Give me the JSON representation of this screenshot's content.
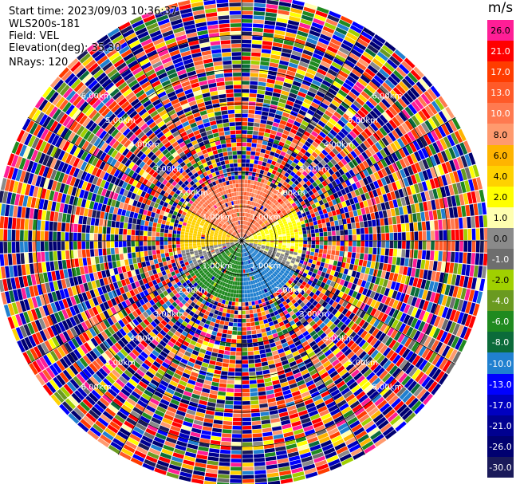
{
  "info": {
    "start_time": "Start time: 2023/09/03 10:36:37",
    "station": "WLS200s-181",
    "field": "Field: VEL",
    "elevation": "Elevation(deg): 35.30",
    "nrays": "NRays: 120"
  },
  "colorbar": {
    "unit": "m/s",
    "levels": [
      {
        "label": "26.0",
        "color": "#ff1e96",
        "text": "#000000"
      },
      {
        "label": "21.0",
        "color": "#ff0000",
        "text": "#ffffff"
      },
      {
        "label": "17.0",
        "color": "#ff3c00",
        "text": "#ffffff"
      },
      {
        "label": "13.0",
        "color": "#ff5a28",
        "text": "#ffffff"
      },
      {
        "label": "10.0",
        "color": "#ff7a50",
        "text": "#ffffff"
      },
      {
        "label": "8.0",
        "color": "#ff9a6e",
        "text": "#000000"
      },
      {
        "label": "6.0",
        "color": "#ffb400",
        "text": "#000000"
      },
      {
        "label": "4.0",
        "color": "#ffd200",
        "text": "#000000"
      },
      {
        "label": "2.0",
        "color": "#ffff00",
        "text": "#000000"
      },
      {
        "label": "1.0",
        "color": "#ffffb0",
        "text": "#000000"
      },
      {
        "label": "0.0",
        "color": "#8a8a8a",
        "text": "#000000"
      },
      {
        "label": "-1.0",
        "color": "#6e6e6e",
        "text": "#ffffff"
      },
      {
        "label": "-2.0",
        "color": "#a0d000",
        "text": "#000000"
      },
      {
        "label": "-4.0",
        "color": "#6a9a20",
        "text": "#ffffff"
      },
      {
        "label": "-6.0",
        "color": "#1f8a1f",
        "text": "#ffffff"
      },
      {
        "label": "-8.0",
        "color": "#0b6b3a",
        "text": "#ffffff"
      },
      {
        "label": "-10.0",
        "color": "#2080d0",
        "text": "#ffffff"
      },
      {
        "label": "-13.0",
        "color": "#0000ff",
        "text": "#ffffff"
      },
      {
        "label": "-17.0",
        "color": "#0000c0",
        "text": "#ffffff"
      },
      {
        "label": "-21.0",
        "color": "#000090",
        "text": "#ffffff"
      },
      {
        "label": "-26.0",
        "color": "#000070",
        "text": "#ffffff"
      },
      {
        "label": "-30.0",
        "color": "#1a1a5a",
        "text": "#ffffff"
      }
    ]
  },
  "chart_data": {
    "type": "heatmap",
    "projection": "polar PPI",
    "field": "VEL",
    "units": "m/s",
    "nrays": 120,
    "range_labels": [
      "1.00km",
      "2.00km",
      "3.00km",
      "4.00km",
      "5.00km",
      "6.00km"
    ],
    "range_rings_km": [
      1,
      2,
      3,
      4,
      5,
      6
    ],
    "max_range_km": 7.2,
    "color_scale": [
      26.0,
      21.0,
      17.0,
      13.0,
      10.0,
      8.0,
      6.0,
      4.0,
      2.0,
      1.0,
      0.0,
      -1.0,
      -2.0,
      -4.0,
      -6.0,
      -8.0,
      -10.0,
      -13.0,
      -17.0,
      -21.0,
      -26.0,
      -30.0
    ],
    "valid_region_max_km": 1.7,
    "sector_pattern": [
      {
        "sector": "N (upper-left to upper-right)",
        "near_range_velocity": 10.0
      },
      {
        "sector": "E",
        "near_range_velocity": 2.0
      },
      {
        "sector": "W",
        "near_range_velocity": 4.0
      },
      {
        "sector": "S-SW",
        "near_range_velocity": -6.0
      },
      {
        "sector": "S-SE",
        "near_range_velocity": -10.0
      }
    ],
    "beyond_valid_region": "noise"
  }
}
